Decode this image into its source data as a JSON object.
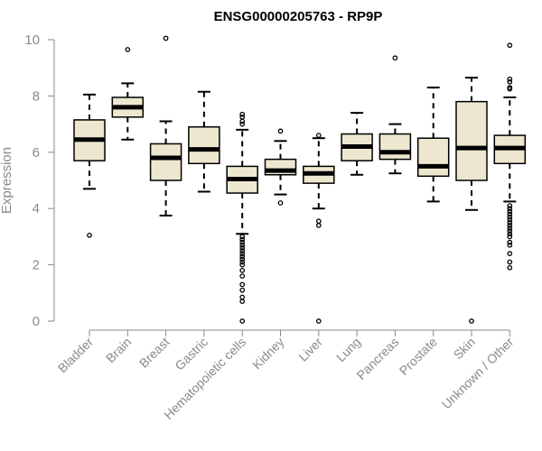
{
  "chart_data": {
    "type": "boxplot",
    "title": "ENSG00000205763 - RP9P",
    "xlabel": "",
    "ylabel": "Expression",
    "ylim": [
      0,
      10
    ],
    "yticks": [
      0,
      2,
      4,
      6,
      8,
      10
    ],
    "categories": [
      "Bladder",
      "Brain",
      "Breast",
      "Gastric",
      "Hematopoietic cells",
      "Kidney",
      "Liver",
      "Lung",
      "Pancreas",
      "Prostate",
      "Skin",
      "Unknown / Other"
    ],
    "boxes": [
      {
        "q1": 5.7,
        "median": 6.45,
        "q3": 7.15,
        "whisker_low": 4.7,
        "whisker_high": 8.05,
        "outliers": [
          3.05
        ]
      },
      {
        "q1": 7.25,
        "median": 7.6,
        "q3": 7.95,
        "whisker_low": 6.45,
        "whisker_high": 8.45,
        "outliers": [
          9.65
        ]
      },
      {
        "q1": 5.0,
        "median": 5.8,
        "q3": 6.3,
        "whisker_low": 3.75,
        "whisker_high": 7.1,
        "outliers": [
          10.05
        ]
      },
      {
        "q1": 5.6,
        "median": 6.1,
        "q3": 6.9,
        "whisker_low": 4.6,
        "whisker_high": 8.15,
        "outliers": []
      },
      {
        "q1": 4.55,
        "median": 5.05,
        "q3": 5.5,
        "whisker_low": 3.1,
        "whisker_high": 6.8,
        "outliers": [
          7.35,
          7.25,
          7.1,
          7.0,
          3.0,
          2.9,
          2.8,
          2.7,
          2.6,
          2.5,
          2.4,
          2.3,
          2.2,
          2.1,
          2.0,
          1.8,
          1.6,
          1.3,
          1.1,
          0.85,
          0.7,
          0.0
        ]
      },
      {
        "q1": 5.2,
        "median": 5.35,
        "q3": 5.75,
        "whisker_low": 4.5,
        "whisker_high": 6.4,
        "outliers": [
          6.75,
          4.2
        ]
      },
      {
        "q1": 4.9,
        "median": 5.25,
        "q3": 5.5,
        "whisker_low": 4.0,
        "whisker_high": 6.5,
        "outliers": [
          6.6,
          3.55,
          3.4,
          0.0
        ]
      },
      {
        "q1": 5.7,
        "median": 6.2,
        "q3": 6.65,
        "whisker_low": 5.2,
        "whisker_high": 7.4,
        "outliers": []
      },
      {
        "q1": 5.75,
        "median": 6.0,
        "q3": 6.65,
        "whisker_low": 5.25,
        "whisker_high": 7.0,
        "outliers": [
          9.35
        ]
      },
      {
        "q1": 5.15,
        "median": 5.5,
        "q3": 6.5,
        "whisker_low": 4.25,
        "whisker_high": 8.3,
        "outliers": []
      },
      {
        "q1": 5.0,
        "median": 6.15,
        "q3": 7.8,
        "whisker_low": 3.95,
        "whisker_high": 8.65,
        "outliers": [
          0.0
        ]
      },
      {
        "q1": 5.6,
        "median": 6.15,
        "q3": 6.6,
        "whisker_low": 4.25,
        "whisker_high": 7.95,
        "outliers": [
          9.8,
          8.6,
          8.5,
          8.3,
          8.25,
          4.1,
          4.0,
          3.9,
          3.8,
          3.7,
          3.6,
          3.5,
          3.4,
          3.3,
          3.2,
          3.1,
          3.0,
          2.8,
          2.7,
          2.4,
          2.1,
          1.9
        ]
      }
    ],
    "colors": {
      "box_fill": "#ede7cf",
      "box_stroke": "#000000",
      "median": "#000000",
      "axis": "#8a8a8a",
      "outlier": "#000000"
    }
  }
}
